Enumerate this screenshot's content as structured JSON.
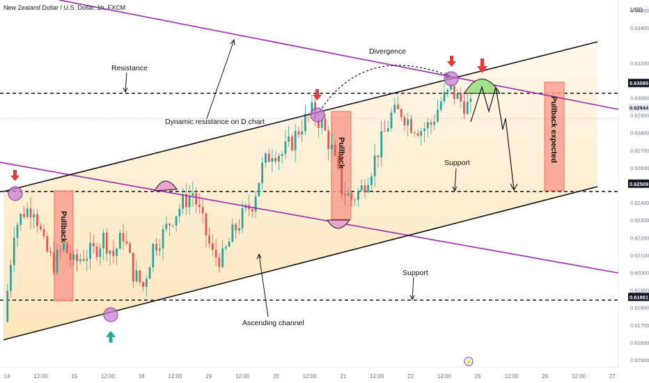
{
  "header": {
    "title": "New Zealand Dollar / U.S. Dollar, 1h, FXCM"
  },
  "price_axis": {
    "currency": "USD",
    "ticks": [
      "0.63500",
      "0.63400",
      "0.63200",
      "0.63000",
      "0.62900",
      "0.62800",
      "0.62700",
      "0.62600",
      "0.62400",
      "0.62300",
      "0.62200",
      "0.62100",
      "0.62000",
      "0.61900",
      "0.61800",
      "0.61700",
      "0.61600",
      "0.61500"
    ],
    "marked_levels": [
      {
        "value": "0.63085",
        "style": "dark"
      },
      {
        "value": "0.62944",
        "style": "light"
      },
      {
        "value": "0.62509",
        "style": "dark"
      },
      {
        "value": "0.61861",
        "style": "dark"
      }
    ]
  },
  "time_axis": {
    "labels": [
      "14",
      "12:00",
      "15",
      "12:00",
      "18",
      "12:00",
      "19",
      "12:00",
      "20",
      "12:00",
      "21",
      "12:00",
      "22",
      "12:00",
      "25",
      "12:00",
      "26",
      "12:00",
      "27"
    ]
  },
  "annotations": {
    "resistance": "Resistance",
    "dynamic_resistance": "Dynamic resistance on D chart",
    "divergence": "Divergence",
    "support_upper": "Support",
    "support_lower": "Support",
    "ascending_channel": "Ascending channel",
    "pullback_1": "Pullback",
    "pullback_2": "Pullback",
    "pullback_expected": "Pullback expected"
  },
  "colors": {
    "bull": "#26a69a",
    "bear": "#ef5350",
    "channel_line": "#111111",
    "trendline": "#9c27b0",
    "channel_fill": "#fde9c4",
    "pullback_box": "#f8a08f",
    "marker_arrow_down": "#e53935",
    "marker_arrow_up": "#26a69a",
    "circle_marker": "#c77dd6",
    "green_arc": "#a5e08a"
  },
  "chart_data": {
    "type": "candlestick",
    "symbol": "NZDUSD",
    "timeframe": "1h",
    "y_range": [
      0.6146,
      0.6356
    ],
    "levels": {
      "resistance": 0.63085,
      "last": 0.62944,
      "support_upper": 0.62509,
      "support_lower": 0.61861
    },
    "close_path": [
      [
        0,
        0.6172
      ],
      [
        3,
        0.6225
      ],
      [
        6,
        0.6235
      ],
      [
        9,
        0.6238
      ],
      [
        12,
        0.6215
      ],
      [
        15,
        0.6205
      ],
      [
        18,
        0.6215
      ],
      [
        21,
        0.6205
      ],
      [
        24,
        0.621
      ],
      [
        27,
        0.6212
      ],
      [
        30,
        0.622
      ],
      [
        33,
        0.621
      ],
      [
        36,
        0.6222
      ],
      [
        39,
        0.62
      ],
      [
        42,
        0.6192
      ],
      [
        45,
        0.6215
      ],
      [
        48,
        0.6222
      ],
      [
        51,
        0.6232
      ],
      [
        54,
        0.624
      ],
      [
        57,
        0.6246
      ],
      [
        60,
        0.6228
      ],
      [
        63,
        0.621
      ],
      [
        66,
        0.6208
      ],
      [
        69,
        0.6222
      ],
      [
        72,
        0.6232
      ],
      [
        75,
        0.624
      ],
      [
        78,
        0.626
      ],
      [
        81,
        0.627
      ],
      [
        84,
        0.6268
      ],
      [
        87,
        0.6275
      ],
      [
        90,
        0.6285
      ],
      [
        93,
        0.6292
      ],
      [
        96,
        0.6285
      ],
      [
        99,
        0.627
      ],
      [
        102,
        0.6248
      ],
      [
        105,
        0.6242
      ],
      [
        108,
        0.6248
      ],
      [
        111,
        0.626
      ],
      [
        114,
        0.6275
      ],
      [
        117,
        0.629
      ],
      [
        120,
        0.6292
      ],
      [
        123,
        0.6285
      ],
      [
        126,
        0.6282
      ],
      [
        129,
        0.6285
      ],
      [
        132,
        0.6298
      ],
      [
        135,
        0.6304
      ],
      [
        138,
        0.6298
      ],
      [
        141,
        0.6294
      ]
    ]
  }
}
